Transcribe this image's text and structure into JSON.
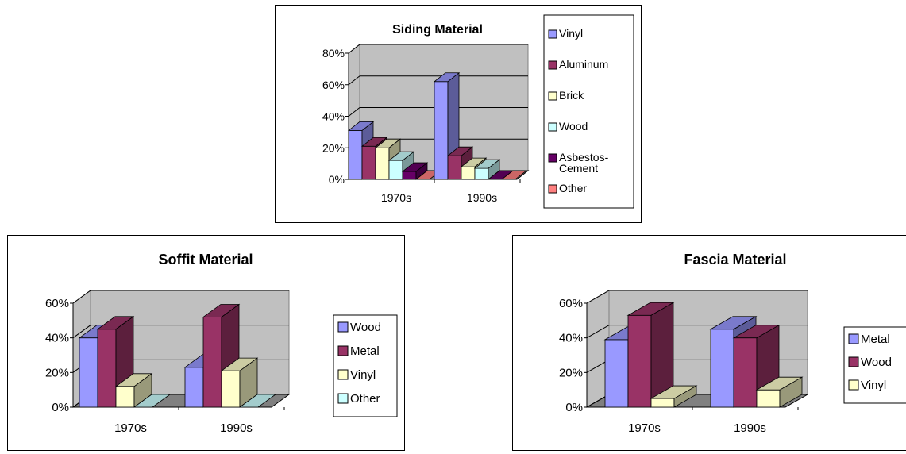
{
  "chart_data": [
    {
      "type": "bar",
      "title": "Siding Material",
      "categories": [
        "1970s",
        "1990s"
      ],
      "series": [
        {
          "name": "Vinyl",
          "values": [
            31,
            62
          ],
          "color": "#9999ff"
        },
        {
          "name": "Aluminum",
          "values": [
            21,
            15
          ],
          "color": "#993366"
        },
        {
          "name": "Brick",
          "values": [
            20,
            8
          ],
          "color": "#ffffcc"
        },
        {
          "name": "Wood",
          "values": [
            12,
            7
          ],
          "color": "#ccffff"
        },
        {
          "name": "Asbestos-Cement",
          "values": [
            5,
            0
          ],
          "color": "#660066"
        },
        {
          "name": "Other",
          "values": [
            0,
            0
          ],
          "color": "#ff8080"
        }
      ],
      "yticks": [
        "0%",
        "20%",
        "40%",
        "60%",
        "80%"
      ],
      "ylim": [
        0,
        80
      ],
      "legend_position": "right",
      "grid": true
    },
    {
      "type": "bar",
      "title": "Soffit Material",
      "categories": [
        "1970s",
        "1990s"
      ],
      "series": [
        {
          "name": "Wood",
          "values": [
            40,
            23
          ],
          "color": "#9999ff"
        },
        {
          "name": "Metal",
          "values": [
            45,
            52
          ],
          "color": "#993366"
        },
        {
          "name": "Vinyl",
          "values": [
            12,
            21
          ],
          "color": "#ffffcc"
        },
        {
          "name": "Other",
          "values": [
            0,
            0
          ],
          "color": "#ccffff"
        }
      ],
      "yticks": [
        "0%",
        "20%",
        "40%",
        "60%"
      ],
      "ylim": [
        0,
        60
      ],
      "legend_position": "right",
      "grid": true
    },
    {
      "type": "bar",
      "title": "Fascia Material",
      "categories": [
        "1970s",
        "1990s"
      ],
      "series": [
        {
          "name": "Metal",
          "values": [
            39,
            45
          ],
          "color": "#9999ff"
        },
        {
          "name": "Wood",
          "values": [
            53,
            40
          ],
          "color": "#993366"
        },
        {
          "name": "Vinyl",
          "values": [
            5,
            10
          ],
          "color": "#ffffcc"
        }
      ],
      "yticks": [
        "0%",
        "20%",
        "40%",
        "60%"
      ],
      "ylim": [
        0,
        60
      ],
      "legend_position": "right",
      "grid": true
    }
  ]
}
